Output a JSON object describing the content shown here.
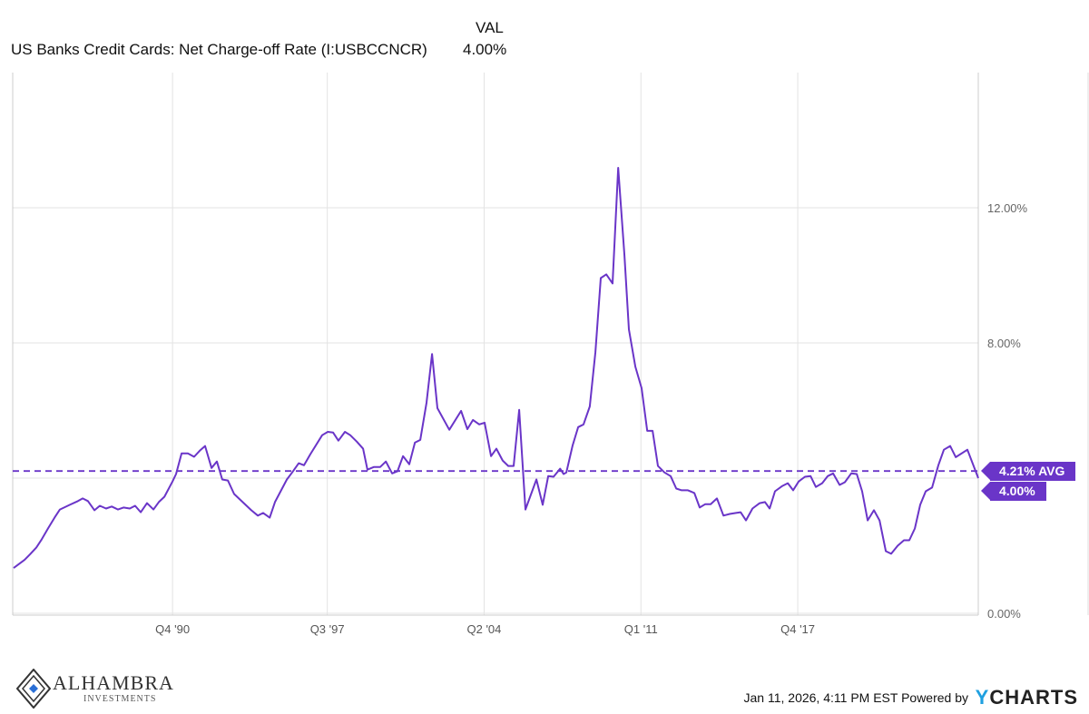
{
  "header": {
    "col_label": "VAL",
    "series_name": "US Banks Credit Cards: Net Charge-off Rate (I:USBCCNCR)",
    "value": "4.00%"
  },
  "badges": {
    "avg": "4.21% AVG",
    "last": "4.00%"
  },
  "footer": {
    "timestamp": "Jan 11, 2026, 4:11 PM EST Powered by",
    "brand_y": "Y",
    "brand_rest": "CHARTS",
    "logo_name": "ALHAMBRA",
    "logo_sub": "INVESTMENTS"
  },
  "colors": {
    "line": "#6a35c8",
    "grid": "#e3e3e3"
  },
  "chart_data": {
    "type": "line",
    "title": "US Banks Credit Cards: Net Charge-off Rate (I:USBCCNCR)",
    "xlabel": "",
    "ylabel": "",
    "xlim": [
      1983.96,
      2025.52
    ],
    "ylim": [
      0,
      16
    ],
    "grid": true,
    "average": 4.21,
    "yticks": [
      {
        "v": 0,
        "label": "0.00%"
      },
      {
        "v": 4,
        "label": ""
      },
      {
        "v": 8,
        "label": "8.00%"
      },
      {
        "v": 12,
        "label": "12.00%"
      }
    ],
    "xticks": [
      {
        "v": 1990.84,
        "label": "Q4 '90"
      },
      {
        "v": 1997.5,
        "label": "Q3 '97"
      },
      {
        "v": 2004.25,
        "label": "Q2 '04"
      },
      {
        "v": 2011.0,
        "label": "Q1 '11"
      },
      {
        "v": 2017.75,
        "label": "Q4 '17"
      }
    ],
    "series": [
      {
        "name": "US Banks Credit Cards: Net Charge-off Rate",
        "points": [
          [
            1984.0,
            1.34
          ],
          [
            1984.47,
            1.58
          ],
          [
            1984.7,
            1.74
          ],
          [
            1984.98,
            1.95
          ],
          [
            1985.21,
            2.19
          ],
          [
            1985.48,
            2.51
          ],
          [
            1985.76,
            2.83
          ],
          [
            1985.99,
            3.07
          ],
          [
            1986.42,
            3.21
          ],
          [
            1986.77,
            3.32
          ],
          [
            1986.97,
            3.4
          ],
          [
            1987.2,
            3.32
          ],
          [
            1987.48,
            3.05
          ],
          [
            1987.71,
            3.18
          ],
          [
            1987.98,
            3.1
          ],
          [
            1988.22,
            3.16
          ],
          [
            1988.49,
            3.07
          ],
          [
            1988.73,
            3.13
          ],
          [
            1989.0,
            3.1
          ],
          [
            1989.23,
            3.18
          ],
          [
            1989.47,
            2.99
          ],
          [
            1989.74,
            3.26
          ],
          [
            1990.02,
            3.07
          ],
          [
            1990.25,
            3.29
          ],
          [
            1990.49,
            3.45
          ],
          [
            1990.84,
            3.9
          ],
          [
            1990.99,
            4.12
          ],
          [
            1991.23,
            4.73
          ],
          [
            1991.5,
            4.73
          ],
          [
            1991.77,
            4.63
          ],
          [
            1992.01,
            4.81
          ],
          [
            1992.24,
            4.95
          ],
          [
            1992.52,
            4.3
          ],
          [
            1992.75,
            4.49
          ],
          [
            1992.98,
            3.96
          ],
          [
            1993.22,
            3.93
          ],
          [
            1993.49,
            3.53
          ],
          [
            1994.23,
            3.05
          ],
          [
            1994.51,
            2.89
          ],
          [
            1994.74,
            2.97
          ],
          [
            1995.02,
            2.83
          ],
          [
            1995.25,
            3.29
          ],
          [
            1995.76,
            3.96
          ],
          [
            1995.99,
            4.17
          ],
          [
            1996.27,
            4.44
          ],
          [
            1996.5,
            4.38
          ],
          [
            1996.77,
            4.71
          ],
          [
            1997.28,
            5.27
          ],
          [
            1997.52,
            5.37
          ],
          [
            1997.75,
            5.35
          ],
          [
            1997.98,
            5.11
          ],
          [
            1998.26,
            5.37
          ],
          [
            1998.49,
            5.27
          ],
          [
            1998.77,
            5.08
          ],
          [
            1999.04,
            4.87
          ],
          [
            1999.23,
            4.25
          ],
          [
            1999.51,
            4.33
          ],
          [
            1999.78,
            4.33
          ],
          [
            2000.02,
            4.49
          ],
          [
            2000.29,
            4.14
          ],
          [
            2000.52,
            4.2
          ],
          [
            2000.76,
            4.65
          ],
          [
            2001.03,
            4.41
          ],
          [
            2001.27,
            5.05
          ],
          [
            2001.5,
            5.13
          ],
          [
            2001.77,
            6.23
          ],
          [
            2002.01,
            7.67
          ],
          [
            2002.24,
            6.07
          ],
          [
            2002.75,
            5.43
          ],
          [
            2003.26,
            5.99
          ],
          [
            2003.53,
            5.45
          ],
          [
            2003.77,
            5.72
          ],
          [
            2004.04,
            5.59
          ],
          [
            2004.27,
            5.64
          ],
          [
            2004.55,
            4.65
          ],
          [
            2004.78,
            4.87
          ],
          [
            2005.05,
            4.52
          ],
          [
            2005.29,
            4.36
          ],
          [
            2005.52,
            4.36
          ],
          [
            2005.76,
            6.02
          ],
          [
            2006.03,
            3.07
          ],
          [
            2006.5,
            3.96
          ],
          [
            2006.77,
            3.21
          ],
          [
            2007.01,
            4.06
          ],
          [
            2007.24,
            4.04
          ],
          [
            2007.52,
            4.28
          ],
          [
            2007.67,
            4.12
          ],
          [
            2007.79,
            4.17
          ],
          [
            2008.06,
            4.97
          ],
          [
            2008.3,
            5.51
          ],
          [
            2008.53,
            5.59
          ],
          [
            2008.8,
            6.12
          ],
          [
            2009.04,
            7.73
          ],
          [
            2009.27,
            9.92
          ],
          [
            2009.51,
            10.03
          ],
          [
            2009.78,
            9.76
          ],
          [
            2010.02,
            13.18
          ],
          [
            2010.29,
            10.59
          ],
          [
            2010.48,
            8.4
          ],
          [
            2010.76,
            7.3
          ],
          [
            2011.03,
            6.66
          ],
          [
            2011.27,
            5.4
          ],
          [
            2011.5,
            5.4
          ],
          [
            2011.73,
            4.36
          ],
          [
            2012.01,
            4.17
          ],
          [
            2012.28,
            4.06
          ],
          [
            2012.52,
            3.69
          ],
          [
            2012.75,
            3.64
          ],
          [
            2013.02,
            3.64
          ],
          [
            2013.3,
            3.56
          ],
          [
            2013.53,
            3.13
          ],
          [
            2013.77,
            3.23
          ],
          [
            2014.0,
            3.23
          ],
          [
            2014.27,
            3.4
          ],
          [
            2014.55,
            2.89
          ],
          [
            2014.82,
            2.94
          ],
          [
            2015.09,
            2.97
          ],
          [
            2015.29,
            2.99
          ],
          [
            2015.52,
            2.75
          ],
          [
            2015.8,
            3.1
          ],
          [
            2016.11,
            3.26
          ],
          [
            2016.34,
            3.29
          ],
          [
            2016.54,
            3.1
          ],
          [
            2016.77,
            3.61
          ],
          [
            2017.09,
            3.77
          ],
          [
            2017.32,
            3.85
          ],
          [
            2017.55,
            3.64
          ],
          [
            2017.79,
            3.9
          ],
          [
            2018.06,
            4.04
          ],
          [
            2018.3,
            4.06
          ],
          [
            2018.53,
            3.74
          ],
          [
            2018.8,
            3.85
          ],
          [
            2019.04,
            4.06
          ],
          [
            2019.27,
            4.14
          ],
          [
            2019.55,
            3.8
          ],
          [
            2019.78,
            3.88
          ],
          [
            2020.05,
            4.14
          ],
          [
            2020.29,
            4.12
          ],
          [
            2020.52,
            3.61
          ],
          [
            2020.76,
            2.75
          ],
          [
            2021.03,
            3.05
          ],
          [
            2021.27,
            2.75
          ],
          [
            2021.54,
            1.84
          ],
          [
            2021.77,
            1.76
          ],
          [
            2022.05,
            2.0
          ],
          [
            2022.32,
            2.16
          ],
          [
            2022.55,
            2.16
          ],
          [
            2022.79,
            2.51
          ],
          [
            2023.02,
            3.21
          ],
          [
            2023.26,
            3.61
          ],
          [
            2023.53,
            3.72
          ],
          [
            2023.8,
            4.38
          ],
          [
            2024.04,
            4.84
          ],
          [
            2024.31,
            4.95
          ],
          [
            2024.55,
            4.62
          ],
          [
            2025.05,
            4.84
          ],
          [
            2025.52,
            4.0
          ]
        ]
      }
    ]
  }
}
